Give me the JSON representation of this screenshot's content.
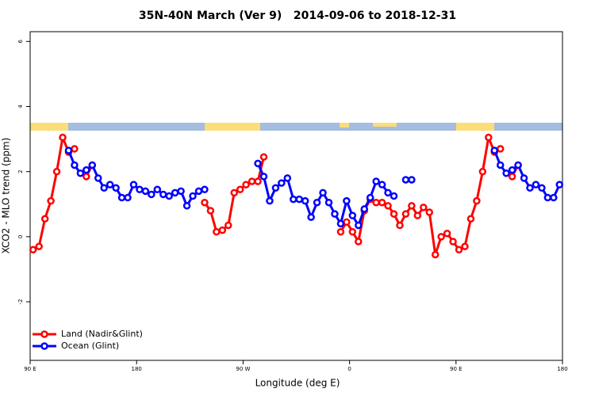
{
  "chart_data": {
    "type": "line",
    "title": "35N-40N March (Ver 9)   2014-09-06 to 2018-12-31",
    "x_label": "Longitude (deg E)",
    "y_label": "XCO2 - MLO trend (ppm)",
    "x": [
      92.5,
      97.5,
      102.5,
      107.5,
      112.5,
      117.5,
      122.5,
      127.5,
      132.5,
      137.5,
      142.5,
      147.5,
      152.5,
      157.5,
      162.5,
      167.5,
      172.5,
      177.5,
      182.5,
      187.5,
      192.5,
      197.5,
      202.5,
      207.5,
      212.5,
      217.5,
      222.5,
      227.5,
      232.5,
      237.5,
      242.5,
      247.5,
      252.5,
      257.5,
      262.5,
      267.5,
      272.5,
      277.5,
      282.5,
      287.5,
      292.5,
      297.5,
      302.5,
      307.5,
      312.5,
      317.5,
      322.5,
      327.5,
      332.5,
      337.5,
      342.5,
      347.5,
      352.5,
      357.5,
      362.5,
      367.5,
      372.5,
      377.5,
      382.5,
      387.5,
      392.5,
      397.5,
      402.5,
      407.5,
      412.5,
      417.5,
      422.5,
      427.5,
      432.5,
      437.5,
      442.5,
      447.5,
      452.5,
      457.5,
      462.5,
      467.5,
      472.5,
      477.5,
      482.5,
      487.5,
      492.5,
      497.5,
      502.5,
      507.5,
      512.5,
      517.5,
      522.5,
      527.5,
      532.5,
      537.5
    ],
    "series": [
      {
        "name": "Land (Nadir&Glint)",
        "color": "#ff0000",
        "values": [
          -0.4,
          -0.3,
          0.55,
          1.1,
          2.0,
          3.05,
          2.6,
          2.7,
          null,
          1.85,
          2.2,
          null,
          null,
          null,
          null,
          null,
          null,
          null,
          null,
          null,
          null,
          null,
          null,
          null,
          null,
          null,
          null,
          null,
          null,
          1.05,
          0.8,
          0.15,
          0.2,
          0.35,
          1.35,
          1.45,
          1.6,
          1.7,
          1.7,
          2.45,
          null,
          null,
          null,
          null,
          null,
          null,
          null,
          null,
          null,
          null,
          null,
          null,
          0.15,
          0.45,
          0.15,
          -0.15,
          0.8,
          1.15,
          1.05,
          1.05,
          0.95,
          0.7,
          0.35,
          0.7,
          0.95,
          0.65,
          0.9,
          0.75,
          -0.55,
          0,
          0.1,
          -0.15,
          -0.4,
          -0.3,
          0.55,
          1.1,
          2.0,
          3.05,
          2.6,
          2.7,
          null,
          1.85,
          2.2,
          null,
          null,
          null,
          null,
          null,
          null,
          null
        ]
      },
      {
        "name": "Ocean (Glint)",
        "color": "#0000ff",
        "values": [
          null,
          null,
          null,
          null,
          null,
          null,
          2.65,
          2.2,
          1.95,
          2.05,
          2.2,
          1.8,
          1.5,
          1.6,
          1.5,
          1.2,
          1.2,
          1.6,
          1.45,
          1.4,
          1.3,
          1.45,
          1.3,
          1.25,
          1.35,
          1.4,
          0.95,
          1.25,
          1.4,
          1.45,
          null,
          null,
          null,
          null,
          null,
          null,
          null,
          null,
          2.25,
          1.85,
          1.1,
          1.5,
          1.65,
          1.8,
          1.15,
          1.15,
          1.1,
          0.6,
          1.05,
          1.35,
          1.05,
          0.7,
          0.4,
          1.1,
          0.65,
          0.35,
          0.85,
          1.2,
          1.7,
          1.6,
          1.35,
          1.25,
          null,
          1.75,
          1.75,
          null,
          null,
          null,
          null,
          null,
          null,
          null,
          null,
          null,
          null,
          null,
          null,
          null,
          2.65,
          2.2,
          1.95,
          2.05,
          2.2,
          1.8,
          1.5,
          1.6,
          1.5,
          1.2,
          1.2,
          1.6
        ]
      }
    ],
    "xlim": [
      90,
      540
    ],
    "xticks": [
      {
        "value": 90,
        "label": "90 E"
      },
      180,
      {
        "value": 270,
        "label": "90 W"
      },
      {
        "value": 360,
        "label": "0"
      },
      {
        "value": 450,
        "label": "90 E"
      },
      {
        "value": 540,
        "label": "180"
      }
    ],
    "ylim": [
      -3.8,
      6.3
    ],
    "yticks": [
      -2,
      0,
      2,
      4,
      6
    ],
    "legend": "bottom-left"
  }
}
